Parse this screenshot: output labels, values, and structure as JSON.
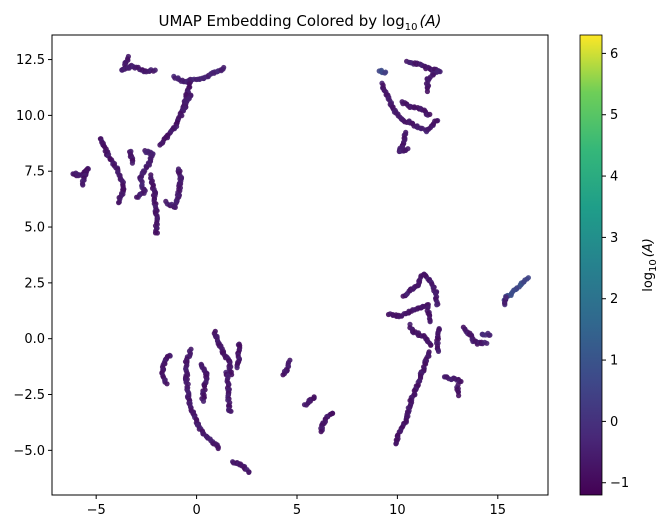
{
  "chart_data": {
    "type": "scatter",
    "title": "UMAP Embedding Colored by log",
    "title_sub": "10",
    "title_suffix": "(A)",
    "xlabel": "",
    "ylabel": "",
    "xlim": [
      -7.2,
      17.5
    ],
    "ylim": [
      -7.0,
      13.6
    ],
    "x_ticks": [
      -5,
      0,
      5,
      10,
      15
    ],
    "x_tick_labels": [
      "−5",
      "0",
      "5",
      "10",
      "15"
    ],
    "y_ticks": [
      -5.0,
      -2.5,
      0.0,
      2.5,
      5.0,
      7.5,
      10.0,
      12.5
    ],
    "y_tick_labels": [
      "−5.0",
      "−2.5",
      "0.0",
      "2.5",
      "5.0",
      "7.5",
      "10.0",
      "12.5"
    ],
    "grid": false,
    "colormap": "viridis",
    "colorbar": {
      "label": "log",
      "label_sub": "10",
      "label_suffix": "(A)",
      "range": [
        -1.2,
        6.3
      ],
      "ticks": [
        -1,
        0,
        1,
        2,
        3,
        4,
        5,
        6
      ],
      "tick_labels": [
        "−1",
        "0",
        "1",
        "2",
        "3",
        "4",
        "5",
        "6"
      ]
    },
    "point_base_value": -0.6,
    "clusters": [
      {
        "path": [
          [
            -3.4,
            12.6
          ],
          [
            -3.7,
            12.0
          ],
          [
            -3.2,
            12.2
          ],
          [
            -2.6,
            12.0
          ],
          [
            -2.1,
            12.0
          ]
        ],
        "value": -0.6
      },
      {
        "path": [
          [
            -1.1,
            11.7
          ],
          [
            -0.6,
            11.5
          ],
          [
            -0.2,
            11.6
          ],
          [
            0.4,
            11.7
          ],
          [
            0.9,
            11.9
          ],
          [
            1.4,
            12.1
          ]
        ],
        "value": -0.4
      },
      {
        "path": [
          [
            -0.3,
            11.5
          ],
          [
            -0.5,
            10.9
          ],
          [
            -0.7,
            10.2
          ],
          [
            -1.0,
            9.6
          ],
          [
            -1.4,
            9.1
          ],
          [
            -1.8,
            8.7
          ]
        ],
        "value": -0.7
      },
      {
        "path": [
          [
            -0.3,
            10.9
          ],
          [
            -0.6,
            10.3
          ]
        ],
        "value": -0.6
      },
      {
        "path": [
          [
            -4.8,
            9.0
          ],
          [
            -4.4,
            8.2
          ],
          [
            -3.9,
            7.5
          ],
          [
            -3.6,
            6.7
          ],
          [
            -3.9,
            6.1
          ]
        ],
        "value": -0.7
      },
      {
        "path": [
          [
            -6.2,
            7.4
          ],
          [
            -5.8,
            7.3
          ],
          [
            -5.4,
            7.6
          ],
          [
            -5.7,
            6.9
          ]
        ],
        "value": -0.7
      },
      {
        "path": [
          [
            -2.6,
            8.4
          ],
          [
            -2.2,
            8.3
          ],
          [
            -2.4,
            7.8
          ],
          [
            -2.8,
            7.2
          ],
          [
            -2.6,
            6.6
          ],
          [
            -3.0,
            6.3
          ]
        ],
        "value": -0.5
      },
      {
        "path": [
          [
            -2.3,
            7.3
          ],
          [
            -2.1,
            6.5
          ],
          [
            -2.0,
            5.6
          ],
          [
            -2.0,
            4.7
          ]
        ],
        "value": -0.7
      },
      {
        "path": [
          [
            -1.5,
            6.1
          ],
          [
            -1.1,
            5.9
          ],
          [
            -0.9,
            6.4
          ],
          [
            -0.8,
            7.2
          ],
          [
            -0.9,
            7.6
          ]
        ],
        "value": -0.6
      },
      {
        "path": [
          [
            -3.3,
            8.4
          ],
          [
            -3.2,
            7.9
          ]
        ],
        "value": -0.7
      },
      {
        "path": [
          [
            9.1,
            12.0
          ],
          [
            9.4,
            11.9
          ]
        ],
        "value": 0.6
      },
      {
        "path": [
          [
            10.5,
            12.4
          ],
          [
            11.0,
            12.3
          ],
          [
            11.6,
            12.1
          ],
          [
            12.1,
            12.0
          ],
          [
            11.5,
            11.6
          ],
          [
            11.5,
            11.1
          ]
        ],
        "value": -0.6
      },
      {
        "path": [
          [
            9.2,
            11.4
          ],
          [
            9.5,
            10.9
          ],
          [
            9.8,
            10.3
          ],
          [
            10.2,
            9.8
          ],
          [
            10.6,
            9.7
          ],
          [
            11.0,
            9.5
          ],
          [
            11.5,
            9.3
          ],
          [
            12.0,
            9.8
          ]
        ],
        "value": -0.6
      },
      {
        "path": [
          [
            10.2,
            10.6
          ],
          [
            10.6,
            10.4
          ],
          [
            11.2,
            10.3
          ],
          [
            11.6,
            10.0
          ]
        ],
        "value": -0.7
      },
      {
        "path": [
          [
            10.4,
            9.2
          ],
          [
            10.3,
            8.7
          ],
          [
            10.1,
            8.4
          ],
          [
            10.5,
            8.5
          ]
        ],
        "value": -0.6
      },
      {
        "path": [
          [
            -1.3,
            -0.7
          ],
          [
            -1.6,
            -1.0
          ],
          [
            -1.7,
            -1.5
          ],
          [
            -1.5,
            -2.0
          ]
        ],
        "value": -0.7
      },
      {
        "path": [
          [
            -0.3,
            -0.5
          ],
          [
            -0.5,
            -1.0
          ],
          [
            -0.5,
            -1.8
          ],
          [
            -0.4,
            -2.6
          ],
          [
            -0.2,
            -3.3
          ],
          [
            0.1,
            -3.9
          ],
          [
            0.5,
            -4.4
          ],
          [
            0.9,
            -4.7
          ],
          [
            1.1,
            -4.9
          ]
        ],
        "value": -0.6
      },
      {
        "path": [
          [
            0.2,
            -1.1
          ],
          [
            0.5,
            -1.6
          ],
          [
            0.4,
            -2.1
          ],
          [
            0.3,
            -2.8
          ]
        ],
        "value": -0.7
      },
      {
        "path": [
          [
            0.9,
            0.3
          ],
          [
            1.1,
            -0.2
          ],
          [
            1.3,
            -0.6
          ],
          [
            1.6,
            -1.0
          ],
          [
            1.7,
            -1.6
          ]
        ],
        "value": -0.7
      },
      {
        "path": [
          [
            1.5,
            -1.5
          ],
          [
            1.6,
            -2.3
          ],
          [
            1.6,
            -3.2
          ],
          [
            1.7,
            -3.3
          ]
        ],
        "value": -0.6
      },
      {
        "path": [
          [
            2.1,
            -0.2
          ],
          [
            2.1,
            -0.9
          ],
          [
            2.0,
            -1.3
          ]
        ],
        "value": -0.7
      },
      {
        "path": [
          [
            1.8,
            -5.5
          ],
          [
            2.1,
            -5.6
          ],
          [
            2.4,
            -5.8
          ],
          [
            2.6,
            -6.0
          ]
        ],
        "value": -0.6
      },
      {
        "path": [
          [
            4.6,
            -1.0
          ],
          [
            4.5,
            -1.4
          ],
          [
            4.3,
            -1.6
          ]
        ],
        "value": -0.7
      },
      {
        "path": [
          [
            5.9,
            -2.6
          ],
          [
            5.6,
            -2.8
          ],
          [
            5.4,
            -3.0
          ]
        ],
        "value": -0.7
      },
      {
        "path": [
          [
            6.8,
            -3.3
          ],
          [
            6.5,
            -3.5
          ],
          [
            6.3,
            -3.8
          ],
          [
            6.2,
            -4.2
          ]
        ],
        "value": -0.7
      },
      {
        "path": [
          [
            10.3,
            1.9
          ],
          [
            10.7,
            2.2
          ],
          [
            11.0,
            2.4
          ],
          [
            11.3,
            2.9
          ],
          [
            11.6,
            2.6
          ],
          [
            11.9,
            2.1
          ],
          [
            12.0,
            1.5
          ]
        ],
        "value": -0.6
      },
      {
        "path": [
          [
            9.6,
            1.1
          ],
          [
            10.1,
            1.0
          ],
          [
            10.6,
            1.2
          ],
          [
            11.1,
            1.4
          ],
          [
            11.5,
            1.5
          ],
          [
            11.6,
            0.8
          ]
        ],
        "value": -0.7
      },
      {
        "path": [
          [
            10.6,
            0.6
          ],
          [
            10.8,
            0.3
          ],
          [
            11.3,
            0.1
          ],
          [
            11.7,
            -0.3
          ]
        ],
        "value": -0.7
      },
      {
        "path": [
          [
            12.1,
            0.5
          ],
          [
            12.0,
            0.1
          ],
          [
            12.0,
            -0.6
          ]
        ],
        "value": -0.7
      },
      {
        "path": [
          [
            11.6,
            -0.6
          ],
          [
            11.4,
            -1.1
          ],
          [
            11.2,
            -1.6
          ],
          [
            10.9,
            -2.3
          ],
          [
            10.6,
            -3.0
          ],
          [
            10.4,
            -3.7
          ],
          [
            10.0,
            -4.4
          ],
          [
            9.9,
            -4.7
          ]
        ],
        "value": -0.7
      },
      {
        "path": [
          [
            12.3,
            -1.7
          ],
          [
            12.8,
            -1.8
          ],
          [
            13.2,
            -1.9
          ]
        ],
        "value": -0.6
      },
      {
        "path": [
          [
            13.0,
            -2.1
          ],
          [
            13.0,
            -2.5
          ]
        ],
        "value": -0.7
      },
      {
        "path": [
          [
            13.3,
            0.5
          ],
          [
            13.6,
            0.2
          ],
          [
            13.8,
            -0.1
          ],
          [
            14.0,
            -0.2
          ],
          [
            14.4,
            -0.2
          ]
        ],
        "value": -0.6
      },
      {
        "path": [
          [
            14.2,
            0.2
          ],
          [
            14.6,
            0.2
          ]
        ],
        "value": -0.3
      },
      {
        "path": [
          [
            15.3,
            1.7
          ],
          [
            15.5,
            1.9
          ],
          [
            15.9,
            2.2
          ],
          [
            16.2,
            2.5
          ],
          [
            16.5,
            2.7
          ]
        ],
        "value": 0.7
      },
      {
        "path": [
          [
            15.3,
            1.5
          ],
          [
            15.4,
            1.9
          ]
        ],
        "value": -0.4
      }
    ]
  }
}
